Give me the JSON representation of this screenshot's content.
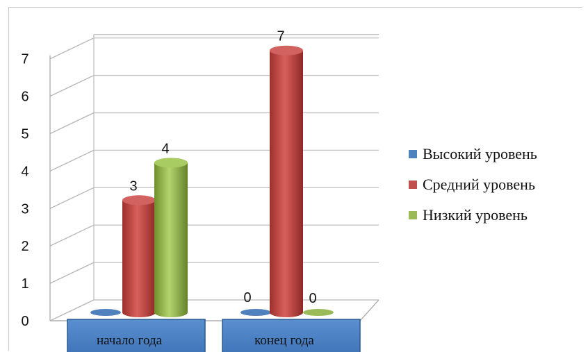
{
  "chart_data": {
    "type": "bar",
    "categories": [
      "начало года",
      "конец года"
    ],
    "series": [
      {
        "name": "Высокий уровень",
        "color": "#4f81bd",
        "values": [
          0,
          0
        ]
      },
      {
        "name": "Средний уровень",
        "color": "#c0504d",
        "values": [
          3,
          7
        ]
      },
      {
        "name": "Низкий уровень",
        "color": "#9bbb59",
        "values": [
          4,
          0
        ]
      }
    ],
    "data_labels": [
      [
        "",
        ""
      ],
      [
        "3",
        "7"
      ],
      [
        "4",
        "0"
      ]
    ],
    "first_category_labels_shown": {
      "Высокий уровень": false
    },
    "second_category_labels_shown": {
      "Высокий уровень": true
    },
    "ylim": [
      0,
      7
    ],
    "yticks": [
      "0",
      "1",
      "2",
      "3",
      "4",
      "5",
      "6",
      "7"
    ],
    "grid": true,
    "legend_position": "right",
    "style": "3d-cylinder"
  }
}
